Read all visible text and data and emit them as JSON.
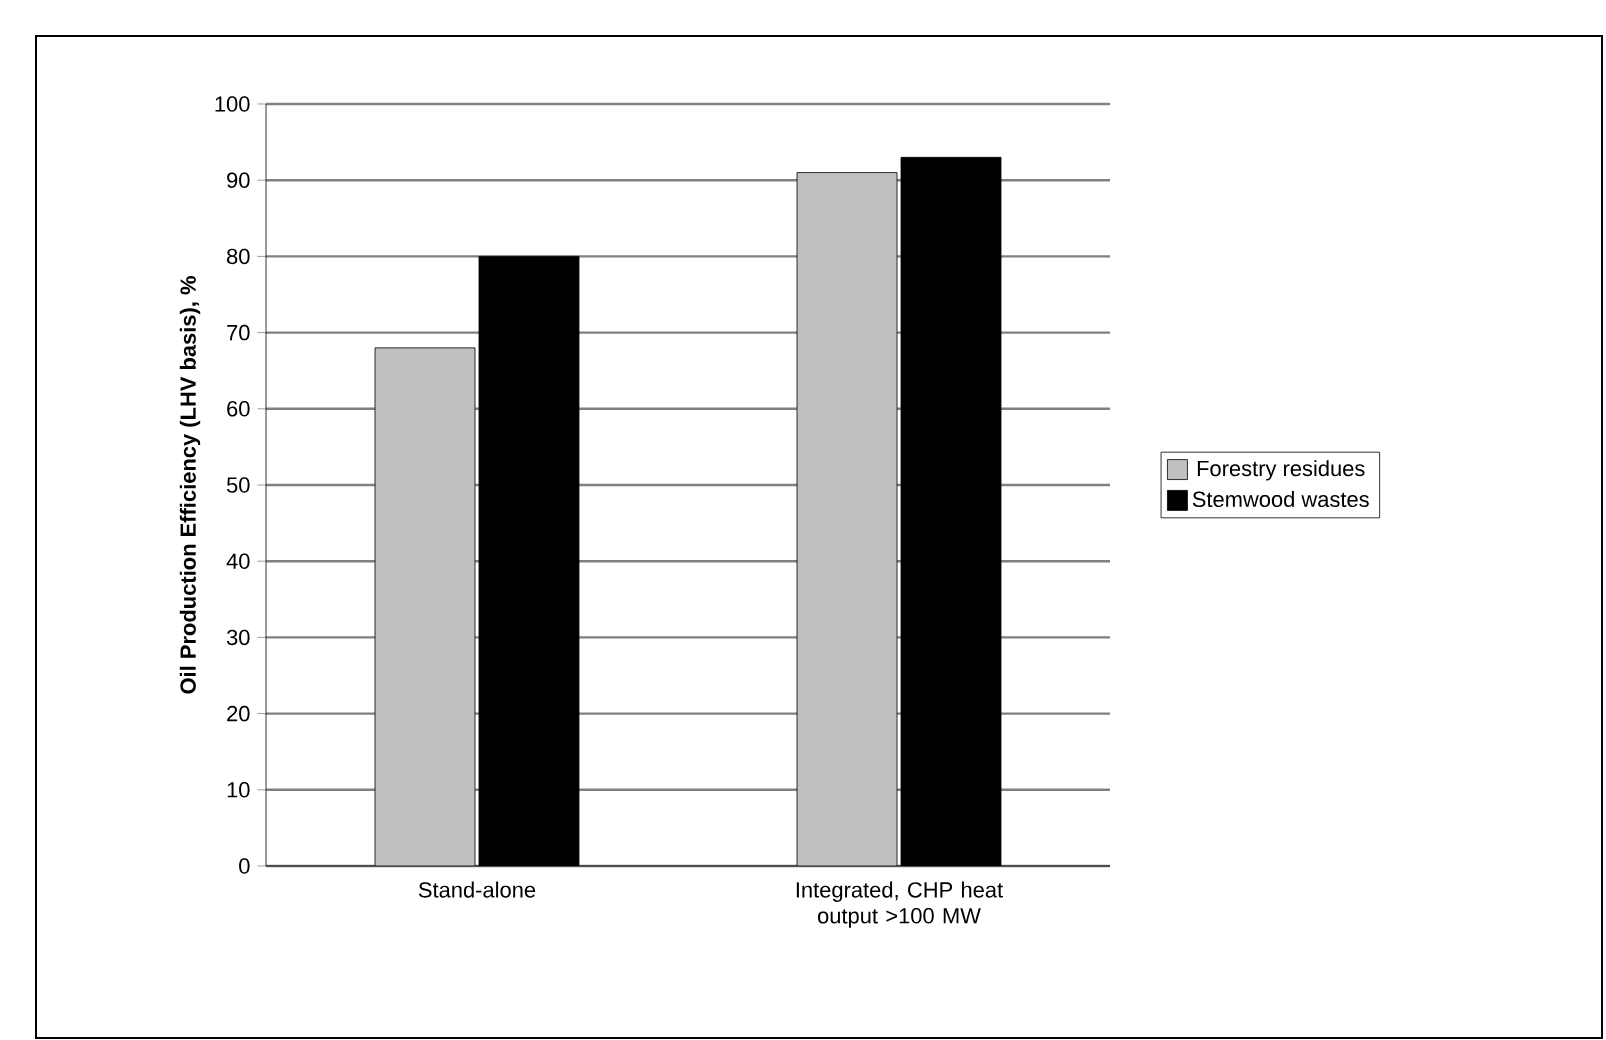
{
  "chart_data": {
    "type": "bar",
    "ylabel": "Oil Production Efficiency (LHV basis), %",
    "categories": [
      "Stand-alone",
      "Integrated, CHP heat output  >100 MW"
    ],
    "series": [
      {
        "name": "Forestry residues",
        "color": "#c0c0c0",
        "values": [
          68,
          91
        ]
      },
      {
        "name": "Stemwood wastes",
        "color": "#000000",
        "values": [
          80,
          93
        ]
      }
    ],
    "ylim": [
      0,
      100
    ],
    "yticks": [
      0,
      10,
      20,
      30,
      40,
      50,
      60,
      70,
      80,
      90,
      100
    ],
    "grid": "y",
    "legend": "right"
  }
}
